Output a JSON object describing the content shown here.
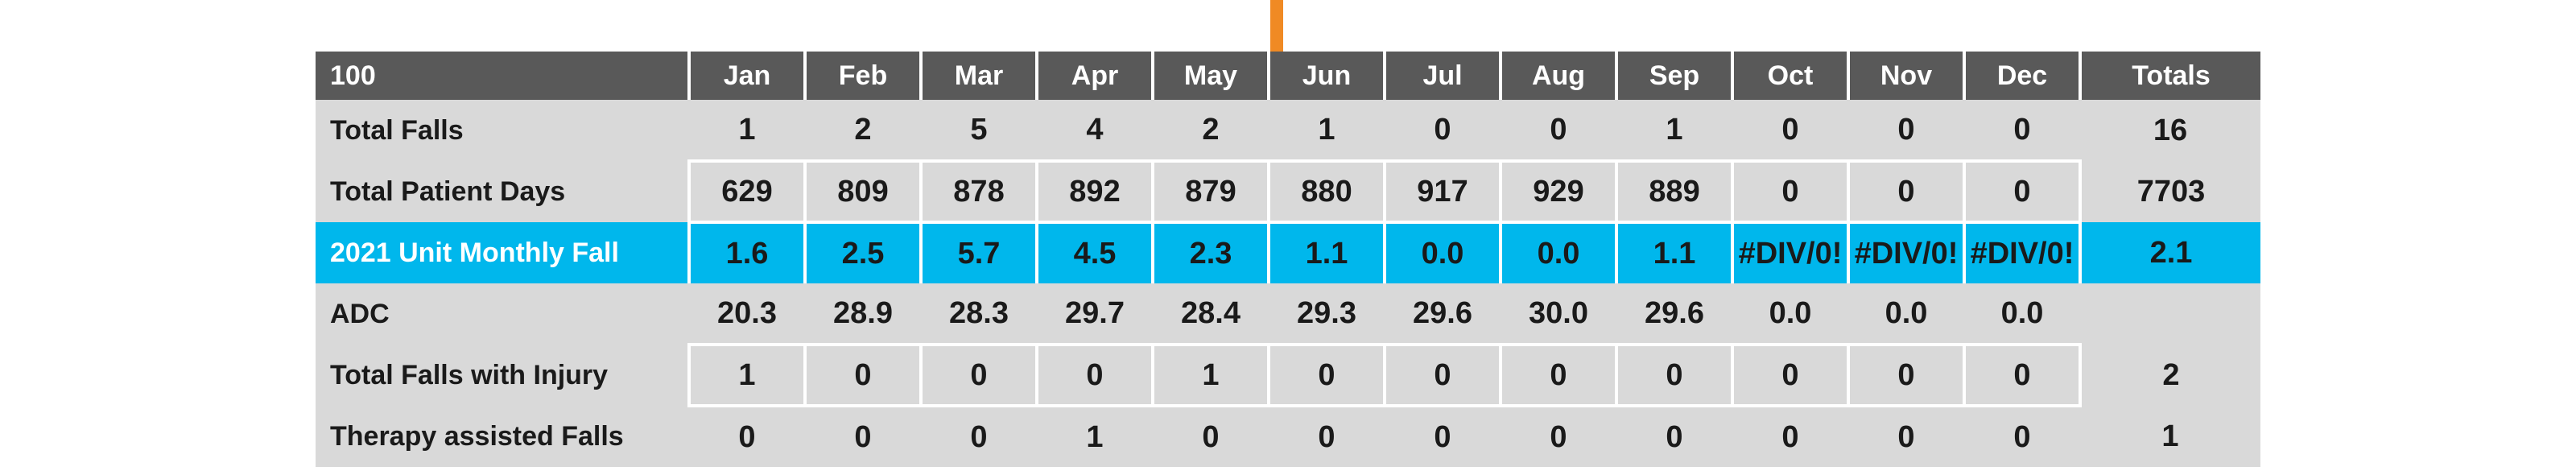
{
  "table": {
    "corner_label": "100",
    "months": [
      "Jan",
      "Feb",
      "Mar",
      "Apr",
      "May",
      "Jun",
      "Jul",
      "Aug",
      "Sep",
      "Oct",
      "Nov",
      "Dec"
    ],
    "totals_header": "Totals",
    "rows": [
      {
        "label": "Total Falls",
        "values": [
          "1",
          "2",
          "5",
          "4",
          "2",
          "1",
          "0",
          "0",
          "1",
          "0",
          "0",
          "0"
        ],
        "total": "16"
      },
      {
        "label": "Total Patient Days",
        "values": [
          "629",
          "809",
          "878",
          "892",
          "879",
          "880",
          "917",
          "929",
          "889",
          "0",
          "0",
          "0"
        ],
        "total": "7703"
      },
      {
        "label": "2021 Unit Monthly Fall",
        "values": [
          "1.6",
          "2.5",
          "5.7",
          "4.5",
          "2.3",
          "1.1",
          "0.0",
          "0.0",
          "1.1",
          "#DIV/0!",
          "#DIV/0!",
          "#DIV/0!"
        ],
        "total": "2.1"
      },
      {
        "label": "ADC",
        "values": [
          "20.3",
          "28.9",
          "28.3",
          "29.7",
          "28.4",
          "29.3",
          "29.6",
          "30.0",
          "29.6",
          "0.0",
          "0.0",
          "0.0"
        ],
        "total": ""
      },
      {
        "label": "Total Falls with Injury",
        "values": [
          "1",
          "0",
          "0",
          "0",
          "1",
          "0",
          "0",
          "0",
          "0",
          "0",
          "0",
          "0"
        ],
        "total": "2"
      },
      {
        "label": "Therapy assisted Falls",
        "values": [
          "0",
          "0",
          "0",
          "1",
          "0",
          "0",
          "0",
          "0",
          "0",
          "0",
          "0",
          "0"
        ],
        "total": "1"
      }
    ]
  },
  "colors": {
    "header_bg": "#595959",
    "row_bg": "#d9d9d9",
    "highlight_bg": "#00b7ec",
    "arrow": "#f08a24"
  }
}
